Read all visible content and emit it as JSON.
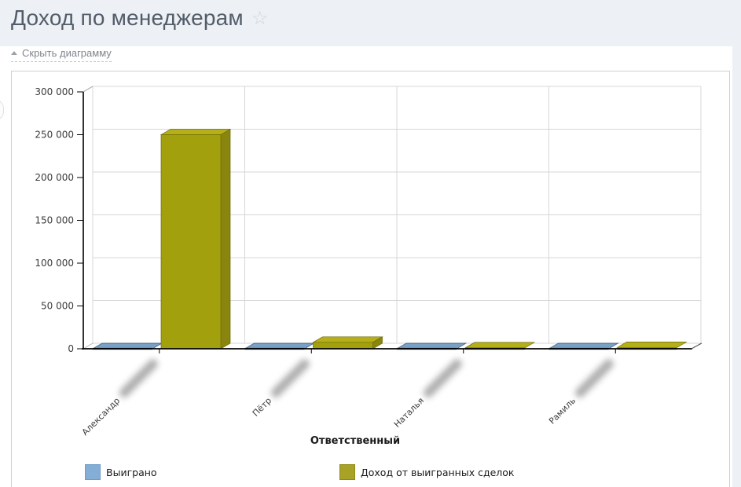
{
  "page": {
    "title": "Доход по менеджерам",
    "toggle_chart_label": "Скрыть диаграмму"
  },
  "chart_data": {
    "type": "bar",
    "style": "3d-column",
    "title": "Доход по менеджерам",
    "xlabel": "Ответственный",
    "ylabel": "",
    "categories": [
      "Александр",
      "Пётр",
      "Наталья",
      "Рамиль"
    ],
    "category_surnames_blurred": true,
    "series": [
      {
        "name": "Выиграно",
        "color": "#85aed6",
        "faces": {
          "top": "#78a1c8",
          "front": "#5d89b4",
          "side": "#4f7aa5",
          "edge": "#31506f",
          "flat_edge": "#203a54"
        },
        "values": [
          0,
          0,
          0,
          0
        ]
      },
      {
        "name": "Доход от выигранных сделок",
        "color": "#a8a327",
        "faces": {
          "top": "#b5b018",
          "front": "#a3a00e",
          "side": "#8a850e",
          "edge": "#6e6a09",
          "flat_edge": "#4a4706"
        },
        "values": [
          250000,
          7500,
          1000,
          1500
        ]
      }
    ],
    "ylim": [
      0,
      300000
    ],
    "ytick_step": 50000,
    "ytick_labels": [
      "0",
      "50 000",
      "100 000",
      "150 000",
      "200 000",
      "250 000",
      "300 000"
    ],
    "grid": true,
    "legend_position": "bottom"
  }
}
